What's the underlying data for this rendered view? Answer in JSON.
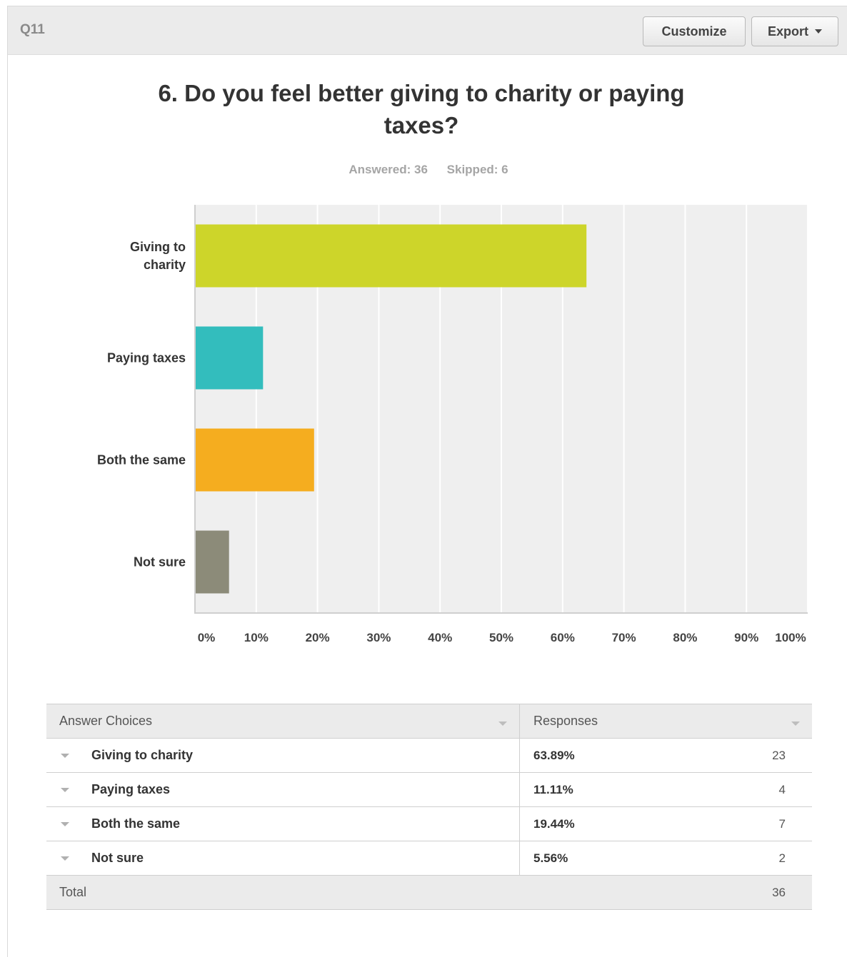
{
  "header": {
    "question_number": "Q11",
    "customize_label": "Customize",
    "export_label": "Export"
  },
  "question": {
    "title": "6. Do you feel better giving to charity or paying taxes?",
    "answered": "Answered: 36",
    "skipped": "Skipped: 6"
  },
  "chart_data": {
    "type": "bar",
    "orientation": "horizontal",
    "title": "6. Do you feel better giving to charity or paying taxes?",
    "categories": [
      "Giving to charity",
      "Paying taxes",
      "Both the same",
      "Not sure"
    ],
    "values": [
      63.89,
      11.11,
      19.44,
      5.56
    ],
    "colors": [
      "#cdd52a",
      "#33bdbd",
      "#f5ad1f",
      "#8c8b79"
    ],
    "xlim": [
      0,
      100
    ],
    "x_ticks": [
      "0%",
      "10%",
      "20%",
      "30%",
      "40%",
      "50%",
      "60%",
      "70%",
      "80%",
      "90%",
      "100%"
    ],
    "grid": true,
    "plot_background": "#efefef"
  },
  "table": {
    "header_choices": "Answer Choices",
    "header_responses": "Responses",
    "rows": [
      {
        "choice": "Giving to charity",
        "percent": "63.89%",
        "count": "23"
      },
      {
        "choice": "Paying taxes",
        "percent": "11.11%",
        "count": "4"
      },
      {
        "choice": "Both the same",
        "percent": "19.44%",
        "count": "7"
      },
      {
        "choice": "Not sure",
        "percent": "5.56%",
        "count": "2"
      }
    ],
    "total_label": "Total",
    "total_count": "36"
  }
}
